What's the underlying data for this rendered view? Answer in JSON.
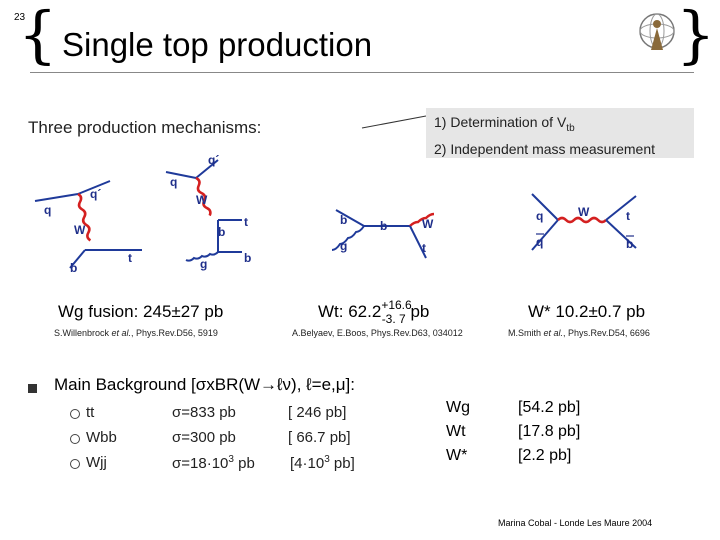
{
  "slide_number": "23",
  "title": "Single top production",
  "intro": "Three production mechanisms:",
  "callout": {
    "line1_prefix": "1) Determination of V",
    "line1_sub": "tb",
    "line2": "2) Independent mass measurement"
  },
  "diagrams": {
    "wg": {
      "q_in": "q",
      "q_out": "q´",
      "w": "W",
      "t": "t",
      "b": "b"
    },
    "wg2": {
      "q": "q",
      "q_out": "q´",
      "w": "W",
      "t": "t",
      "b": "b",
      "g": "g",
      "b2": "b"
    },
    "wt": {
      "b_in": "b",
      "b_mid": "b",
      "w": "W",
      "g": "g",
      "t": "t"
    },
    "ws": {
      "q": "q",
      "qbar": "q",
      "w": "W",
      "t": "t",
      "bbar": "b"
    }
  },
  "xsec": {
    "wg": "Wg fusion: 245±27 pb",
    "wt_prefix": "Wt: 62.2",
    "wt_sup": "+16.6",
    "wt_sub": "-3. 7",
    "wt_unit": "pb",
    "ws": "W* 10.2±0.7 pb"
  },
  "refs": {
    "r1_a": "S.Willenbrock ",
    "r1_b": "et al.",
    "r1_c": ", Phys.Rev.D56, 5919",
    "r2": "A.Belyaev, E.Boos, Phys.Rev.D63, 034012",
    "r3_a": "M.Smith ",
    "r3_b": "et al.",
    "r3_c": ", Phys.Rev.D54, 6696"
  },
  "background": {
    "heading": "Main Background [σxBR(W→ℓν), ℓ=e,μ]:",
    "rows": [
      {
        "proc": "tt",
        "sigma": "σ=833 pb",
        "br": "[ 246  pb]"
      },
      {
        "proc": "Wbb",
        "sigma": "σ=300 pb",
        "br": "[ 66.7 pb]"
      },
      {
        "proc": "Wjj",
        "sigma_prefix": "σ=18·10",
        "sigma_sup": "3",
        "sigma_suffix": " pb",
        "br_prefix": "[4·10",
        "br_sup": "3",
        "br_suffix": " pb]"
      }
    ]
  },
  "signal_summary": {
    "names": [
      "Wg",
      "Wt",
      "W*"
    ],
    "values": [
      "[54.2 pb]",
      "[17.8 pb]",
      "[2.2 pb]"
    ]
  },
  "footer": "Marina Cobal -  Londe Les Maure 2004"
}
